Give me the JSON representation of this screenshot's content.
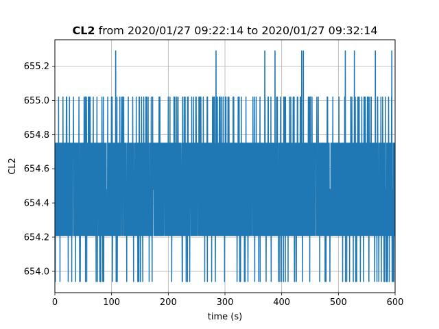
{
  "chart_data": {
    "type": "line",
    "title_bold": "CL2",
    "title_rest": " from 2020/01/27 09:22:14 to 2020/01/27 09:32:14",
    "xlabel": "time (s)",
    "ylabel": "CL2",
    "xlim": [
      0,
      600
    ],
    "ylim": [
      653.875,
      655.355
    ],
    "xticks": [
      0,
      100,
      200,
      300,
      400,
      500,
      600
    ],
    "yticks": [
      654.0,
      654.2,
      654.4,
      654.6,
      654.8,
      655.0,
      655.2
    ],
    "ytick_labels": [
      "654.0",
      "654.2",
      "654.4",
      "654.6",
      "654.8",
      "655.0",
      "655.2"
    ],
    "grid": true,
    "series": [
      {
        "color": "#1f77b4",
        "levels": [
          653.94,
          654.21,
          654.48,
          654.75,
          655.02,
          655.29
        ],
        "spike_times": [
          107,
          284,
          370,
          388,
          435,
          438,
          512,
          528,
          565,
          594
        ]
      }
    ]
  }
}
